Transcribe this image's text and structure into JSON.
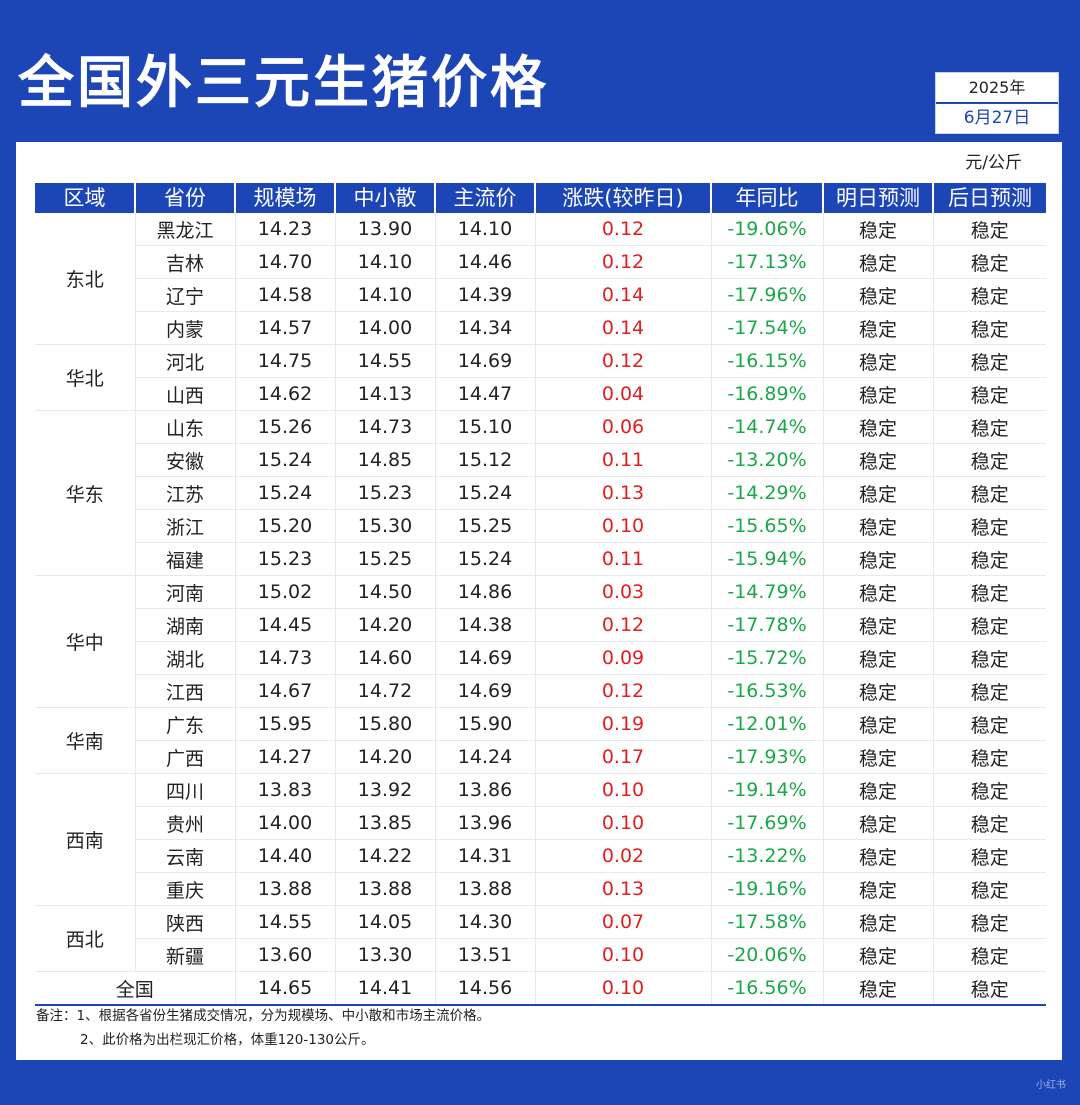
{
  "title": "全国外三元生猪价格",
  "date": {
    "year": "2025年",
    "day": "6月27日"
  },
  "unit": "元/公斤",
  "headers": [
    "区域",
    "省份",
    "规模场",
    "中小散",
    "主流价",
    "涨跌(较昨日)",
    "年同比",
    "明日预测",
    "后日预测"
  ],
  "groups": [
    {
      "region": "东北",
      "rows": [
        [
          "黑龙江",
          "14.23",
          "13.90",
          "14.10",
          "0.12",
          "-19.06%",
          "稳定",
          "稳定"
        ],
        [
          "吉林",
          "14.70",
          "14.10",
          "14.46",
          "0.12",
          "-17.13%",
          "稳定",
          "稳定"
        ],
        [
          "辽宁",
          "14.58",
          "14.10",
          "14.39",
          "0.14",
          "-17.96%",
          "稳定",
          "稳定"
        ],
        [
          "内蒙",
          "14.57",
          "14.00",
          "14.34",
          "0.14",
          "-17.54%",
          "稳定",
          "稳定"
        ]
      ]
    },
    {
      "region": "华北",
      "rows": [
        [
          "河北",
          "14.75",
          "14.55",
          "14.69",
          "0.12",
          "-16.15%",
          "稳定",
          "稳定"
        ],
        [
          "山西",
          "14.62",
          "14.13",
          "14.47",
          "0.04",
          "-16.89%",
          "稳定",
          "稳定"
        ]
      ]
    },
    {
      "region": "华东",
      "rows": [
        [
          "山东",
          "15.26",
          "14.73",
          "15.10",
          "0.06",
          "-14.74%",
          "稳定",
          "稳定"
        ],
        [
          "安徽",
          "15.24",
          "14.85",
          "15.12",
          "0.11",
          "-13.20%",
          "稳定",
          "稳定"
        ],
        [
          "江苏",
          "15.24",
          "15.23",
          "15.24",
          "0.13",
          "-14.29%",
          "稳定",
          "稳定"
        ],
        [
          "浙江",
          "15.20",
          "15.30",
          "15.25",
          "0.10",
          "-15.65%",
          "稳定",
          "稳定"
        ],
        [
          "福建",
          "15.23",
          "15.25",
          "15.24",
          "0.11",
          "-15.94%",
          "稳定",
          "稳定"
        ]
      ]
    },
    {
      "region": "华中",
      "rows": [
        [
          "河南",
          "15.02",
          "14.50",
          "14.86",
          "0.03",
          "-14.79%",
          "稳定",
          "稳定"
        ],
        [
          "湖南",
          "14.45",
          "14.20",
          "14.38",
          "0.12",
          "-17.78%",
          "稳定",
          "稳定"
        ],
        [
          "湖北",
          "14.73",
          "14.60",
          "14.69",
          "0.09",
          "-15.72%",
          "稳定",
          "稳定"
        ],
        [
          "江西",
          "14.67",
          "14.72",
          "14.69",
          "0.12",
          "-16.53%",
          "稳定",
          "稳定"
        ]
      ]
    },
    {
      "region": "华南",
      "rows": [
        [
          "广东",
          "15.95",
          "15.80",
          "15.90",
          "0.19",
          "-12.01%",
          "稳定",
          "稳定"
        ],
        [
          "广西",
          "14.27",
          "14.20",
          "14.24",
          "0.17",
          "-17.93%",
          "稳定",
          "稳定"
        ]
      ]
    },
    {
      "region": "西南",
      "rows": [
        [
          "四川",
          "13.83",
          "13.92",
          "13.86",
          "0.10",
          "-19.14%",
          "稳定",
          "稳定"
        ],
        [
          "贵州",
          "14.00",
          "13.85",
          "13.96",
          "0.10",
          "-17.69%",
          "稳定",
          "稳定"
        ],
        [
          "云南",
          "14.40",
          "14.22",
          "14.31",
          "0.02",
          "-13.22%",
          "稳定",
          "稳定"
        ],
        [
          "重庆",
          "13.88",
          "13.88",
          "13.88",
          "0.13",
          "-19.16%",
          "稳定",
          "稳定"
        ]
      ]
    },
    {
      "region": "西北",
      "rows": [
        [
          "陕西",
          "14.55",
          "14.05",
          "14.30",
          "0.07",
          "-17.58%",
          "稳定",
          "稳定"
        ],
        [
          "新疆",
          "13.60",
          "13.30",
          "13.51",
          "0.10",
          "-20.06%",
          "稳定",
          "稳定"
        ]
      ]
    }
  ],
  "total": {
    "label": "全国",
    "values": [
      "14.65",
      "14.41",
      "14.56",
      "0.10",
      "-16.56%",
      "稳定",
      "稳定"
    ]
  },
  "notes": [
    "备注：1、根据各省份生猪成交情况，分为规模场、中小散和市场主流价格。",
    "2、此价格为出栏现汇价格，体重120-130公斤。"
  ],
  "watermark": "小红书",
  "colors": {
    "brand_blue": "#1c45b5",
    "up_red": "#e02020",
    "down_green": "#1aa84a"
  }
}
